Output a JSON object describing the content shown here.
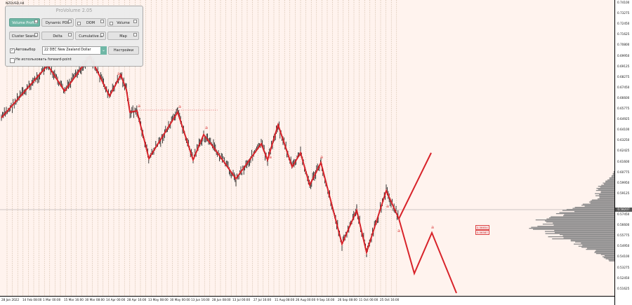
{
  "chart": {
    "symbol": "NZDUSD,H4",
    "current_price": "0.58207",
    "price_labels": [
      "0.74100",
      "0.73275",
      "0.72450",
      "0.71625",
      "0.70800",
      "0.69950",
      "0.69125",
      "0.68275",
      "0.67450",
      "0.66600",
      "0.65775",
      "0.64925",
      "0.64100",
      "0.63250",
      "0.62425",
      "0.61600",
      "0.60775",
      "0.59950",
      "0.59125",
      "0.58207",
      "0.57450",
      "0.56600",
      "0.55775",
      "0.54950",
      "0.54100",
      "0.53275",
      "0.52450",
      "0.51625"
    ],
    "time_labels": [
      "28 Jan 2022",
      "14 Feb 08:00",
      "1 Mar 00:00",
      "15 Mar 16:00",
      "30 Mar 08:00",
      "14 Apr 00:00",
      "28 Apr 16:00",
      "13 May 08:00",
      "30 May 00:00",
      "13 Jun 16:00",
      "28 Jun 08:00",
      "13 Jul 00:00",
      "27 Jul 16:00",
      "11 Aug 08:00",
      "26 Aug 00:00",
      "9 Sep 16:00",
      "26 Sep 08:00",
      "11 Oct 00:00",
      "25 Oct 16:00"
    ],
    "wave_marks": [
      "a",
      "a",
      "a",
      "a",
      "a",
      "a",
      "a",
      "a",
      "a"
    ],
    "level_tags": [
      "0.56654",
      "0.56587"
    ],
    "colors": {
      "background": "#fff3ee",
      "wave": "#d8232a",
      "grid": "#b49a7a",
      "profile": "#8a8a8a",
      "candles": "#111111"
    }
  },
  "panel": {
    "title": "ProVolume 2.05",
    "buttons": [
      {
        "label": "Volume Profile",
        "active": true
      },
      {
        "label": "Dynamic POC",
        "active": false
      },
      {
        "label": "DOM",
        "active": false
      },
      {
        "label": "Volume",
        "active": false
      },
      {
        "label": "Cluster Search",
        "active": false
      },
      {
        "label": "Delta",
        "active": false
      },
      {
        "label": "Cumulative Δ",
        "active": false
      },
      {
        "label": "Map",
        "active": false
      }
    ],
    "auto_select_label": "Автовыбор",
    "auto_select_checked": true,
    "symbol_value": "22 DEC New Zealand Dollar",
    "settings_label": "Настройки",
    "forward_point_label": "Не использовать forward-point",
    "forward_point_checked": false
  }
}
